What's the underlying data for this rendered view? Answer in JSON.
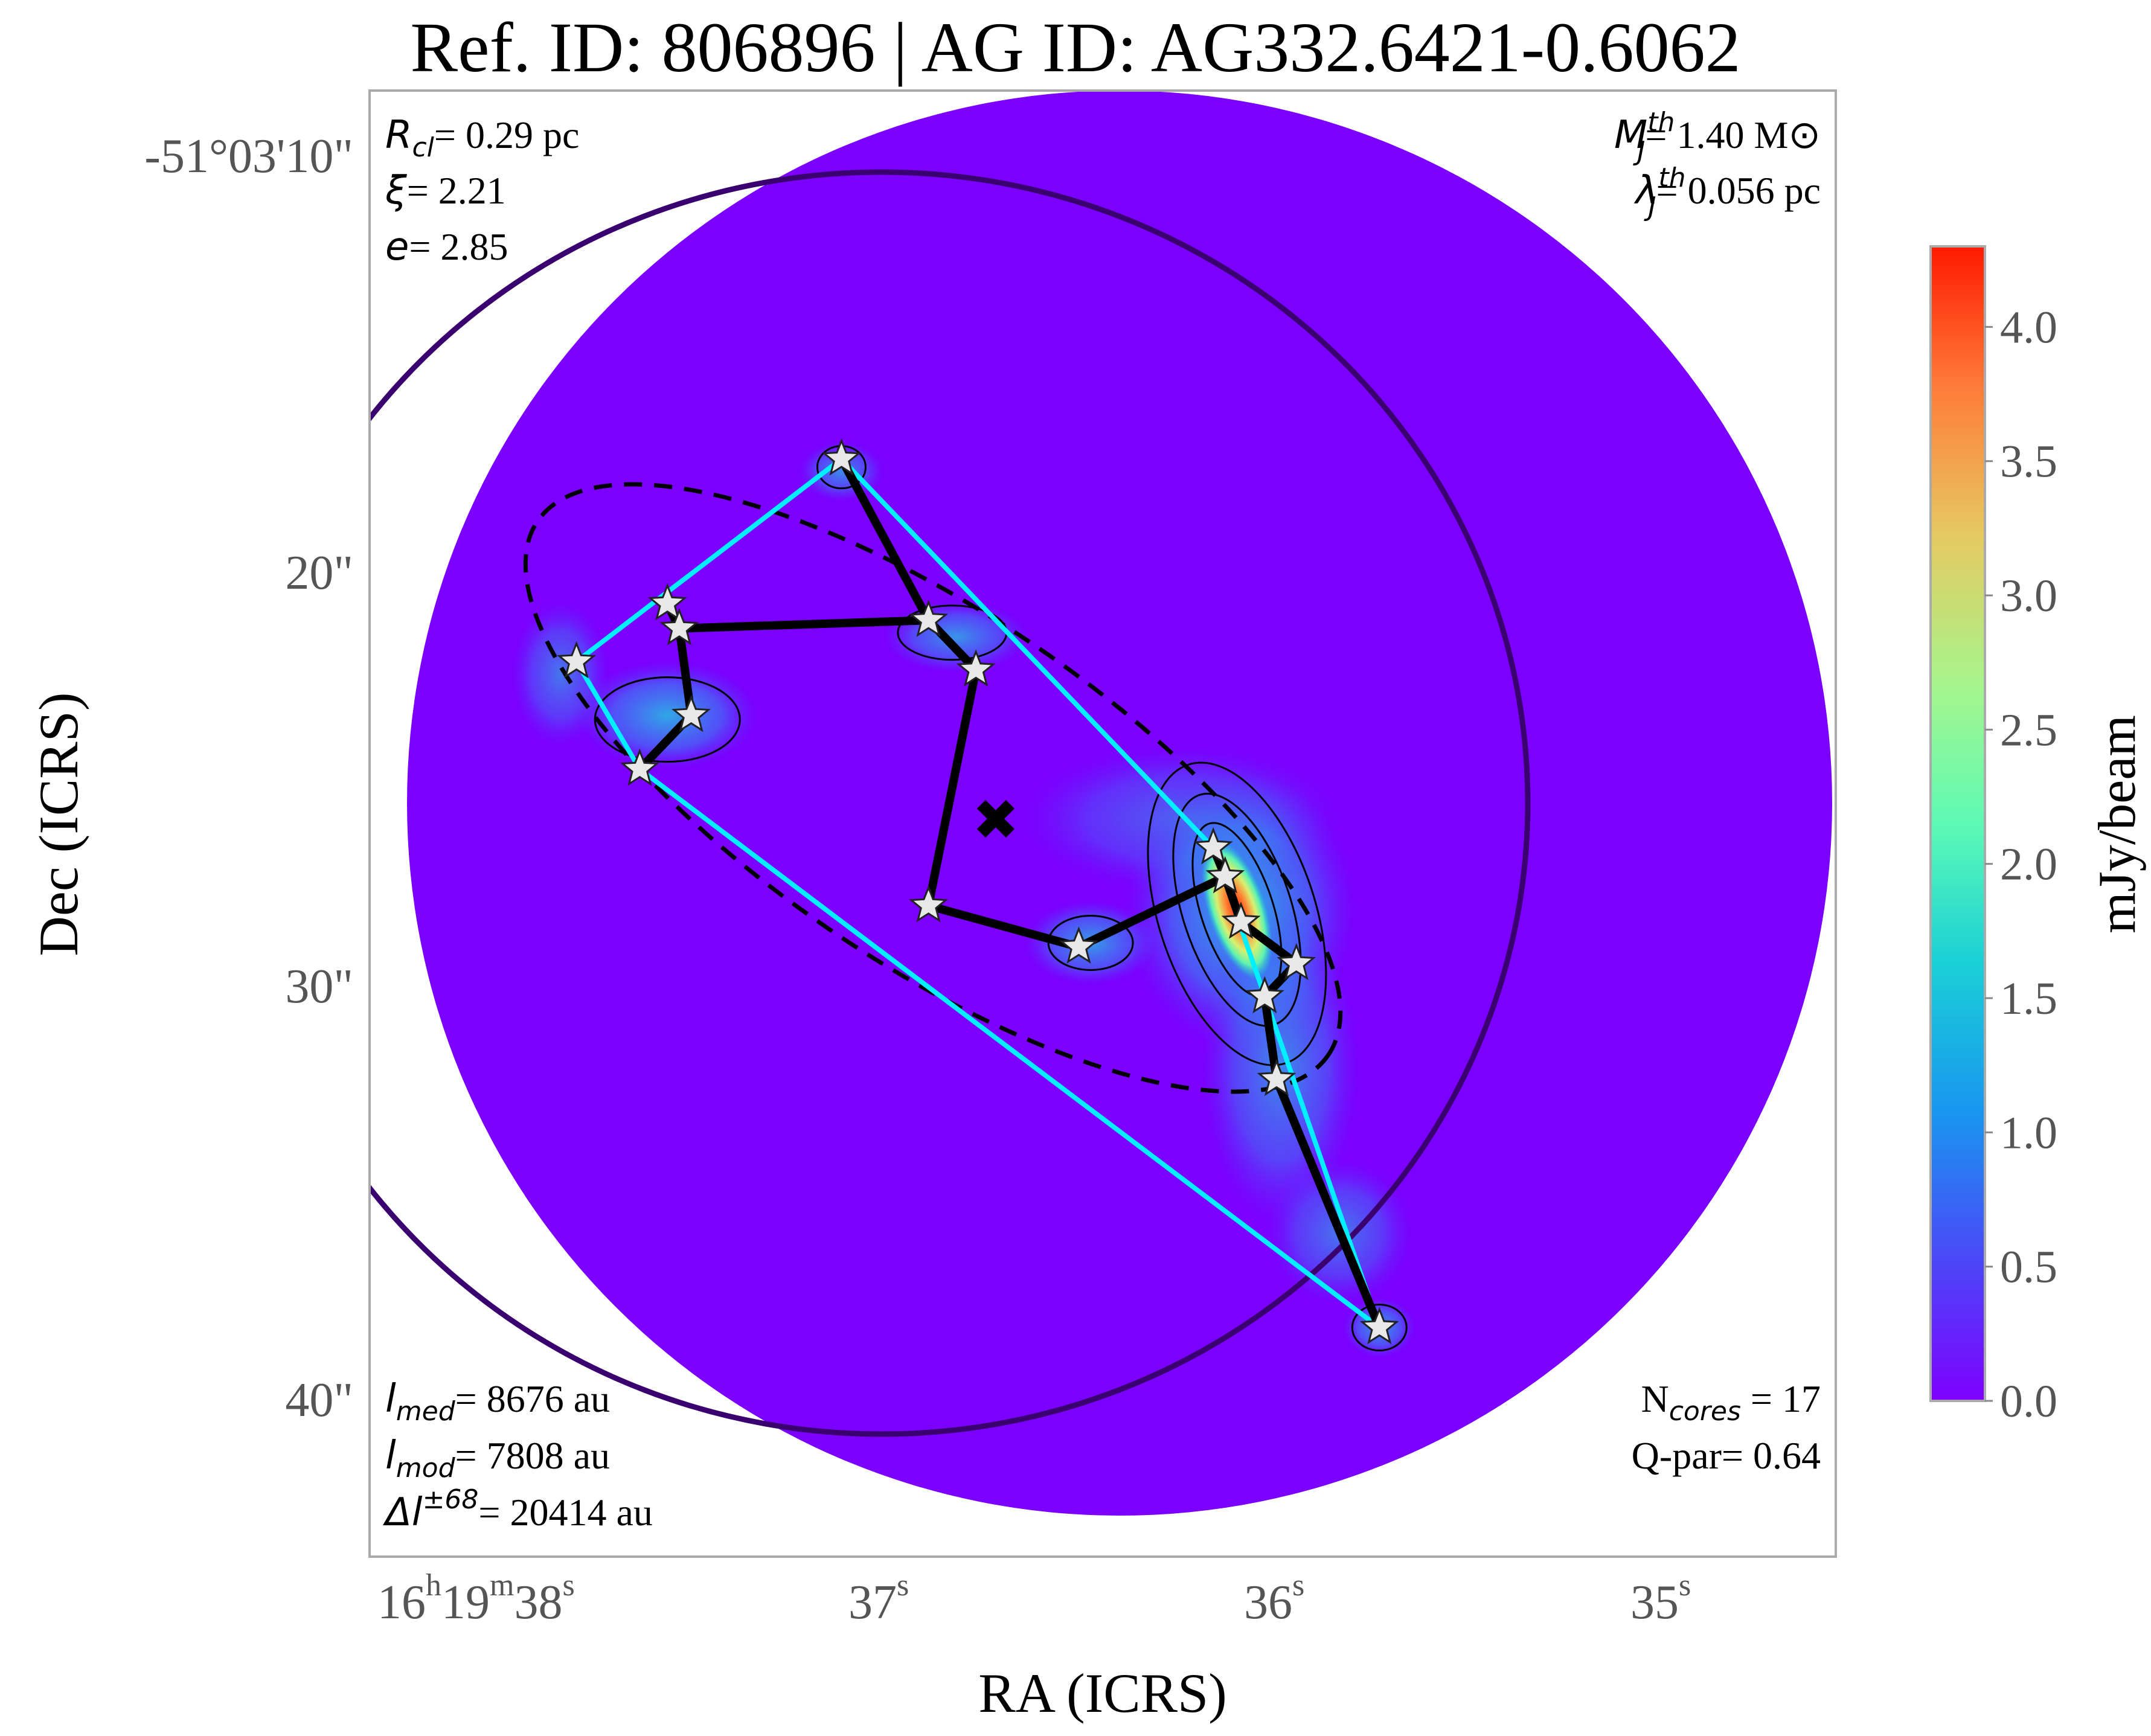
{
  "chart_data": {
    "type": "heatmap",
    "title": "Ref. ID: 806896 | AG ID: AG332.6421-0.6062",
    "xlabel": "RA (ICRS)",
    "ylabel": "Dec (ICRS)",
    "x_ticks": [
      {
        "h": "16",
        "m": "19",
        "s": "38",
        "label": "16h19m38s"
      },
      {
        "s": "37",
        "label": "37s"
      },
      {
        "s": "36",
        "label": "36s"
      },
      {
        "s": "35",
        "label": "35s"
      }
    ],
    "y_ticks": [
      "-51°03'10\"",
      "20\"",
      "30\"",
      "40\""
    ],
    "colorbar": {
      "label": "mJy/beam",
      "min": 0.0,
      "max": 4.3,
      "ticks": [
        "0.0",
        "0.5",
        "1.0",
        "1.5",
        "2.0",
        "2.5",
        "3.0",
        "3.5",
        "4.0"
      ],
      "colormap": "rainbow"
    },
    "annotations": {
      "r_cl": {
        "sym": "R",
        "sub": "cl",
        "value": "= 0.29 pc"
      },
      "xi": {
        "sym": "ξ",
        "value": "= 2.21"
      },
      "e": {
        "sym": "e",
        "value": "= 2.85"
      },
      "mj": {
        "sym": "M",
        "sub": "J",
        "sup": "th",
        "value": "= 1.40 M⊙"
      },
      "lambdaj": {
        "sym": "λ",
        "sub": "J",
        "sup": "th",
        "value": "= 0.056 pc"
      },
      "l_med": {
        "sym": "l",
        "sub": "med",
        "value": "= 8676 au"
      },
      "l_mod": {
        "sym": "l",
        "sub": "mod",
        "value": "= 7808 au"
      },
      "delta_l": {
        "sym": "Δl",
        "sup": "±68",
        "value": "= 20414 au"
      },
      "ncores": {
        "sym": "N",
        "sub": "cores",
        "value": " = 17"
      },
      "qpar": {
        "text": "Q-par= 0.64"
      }
    },
    "cores": [
      {
        "ra_s": 37.41,
        "dec": 17.3
      },
      {
        "ra_s": 37.19,
        "dec": 21.2
      },
      {
        "ra_s": 37.07,
        "dec": 22.4
      },
      {
        "ra_s": 37.85,
        "dec": 20.8
      },
      {
        "ra_s": 37.82,
        "dec": 21.4
      },
      {
        "ra_s": 38.08,
        "dec": 22.2
      },
      {
        "ra_s": 37.79,
        "dec": 23.5
      },
      {
        "ra_s": 37.92,
        "dec": 24.8
      },
      {
        "ra_s": 37.19,
        "dec": 28.1
      },
      {
        "ra_s": 36.81,
        "dec": 29.1
      },
      {
        "ra_s": 36.47,
        "dec": 26.7
      },
      {
        "ra_s": 36.44,
        "dec": 27.4
      },
      {
        "ra_s": 36.4,
        "dec": 28.5
      },
      {
        "ra_s": 36.26,
        "dec": 29.5
      },
      {
        "ra_s": 36.34,
        "dec": 30.3
      },
      {
        "ra_s": 36.31,
        "dec": 32.3
      },
      {
        "ra_s": 36.05,
        "dec": 38.3
      }
    ],
    "mst_edges": [
      [
        0,
        1
      ],
      [
        1,
        2
      ],
      [
        1,
        4
      ],
      [
        3,
        4
      ],
      [
        4,
        6
      ],
      [
        6,
        7
      ],
      [
        2,
        8
      ],
      [
        8,
        9
      ],
      [
        9,
        11
      ],
      [
        10,
        11
      ],
      [
        11,
        12
      ],
      [
        12,
        13
      ],
      [
        13,
        14
      ],
      [
        14,
        15
      ],
      [
        15,
        16
      ]
    ],
    "hull": [
      0,
      10,
      16,
      7,
      5,
      0
    ],
    "centroid": {
      "ra_s": 37.02,
      "dec": 26.0
    },
    "colors": {
      "background_map": "#7b00ff",
      "hull": "#00f0ff",
      "mst": "#000000",
      "large_circle": "#3b0070",
      "peak": "#ff1a00"
    }
  }
}
